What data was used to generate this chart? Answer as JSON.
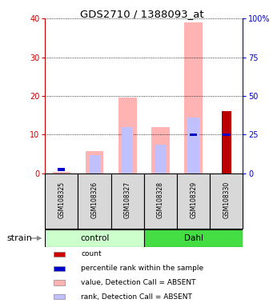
{
  "title": "GDS2710 / 1388093_at",
  "samples": [
    "GSM108325",
    "GSM108326",
    "GSM108327",
    "GSM108328",
    "GSM108329",
    "GSM108330"
  ],
  "groups": [
    "control",
    "control",
    "control",
    "Dahl",
    "Dahl",
    "Dahl"
  ],
  "group_colors": {
    "control": "#ccffcc",
    "Dahl": "#33dd33"
  },
  "ylim_left": [
    0,
    40
  ],
  "ylim_right": [
    0,
    100
  ],
  "yticks_left": [
    0,
    10,
    20,
    30,
    40
  ],
  "yticks_right": [
    0,
    25,
    50,
    75,
    100
  ],
  "ytick_labels_left": [
    "0",
    "10",
    "20",
    "30",
    "40"
  ],
  "ytick_labels_right": [
    "0",
    "25",
    "50",
    "75",
    "100%"
  ],
  "value_absent": [
    0.5,
    5.8,
    19.5,
    12.0,
    39.0,
    0.0
  ],
  "rank_absent": [
    0.0,
    4.8,
    12.0,
    7.5,
    14.5,
    0.0
  ],
  "count_value": [
    0,
    0,
    0,
    0,
    0,
    16.0
  ],
  "percentile_rank": [
    1.0,
    0,
    0,
    0,
    10.0,
    10.0
  ],
  "color_value_absent": "#ffb3b3",
  "color_rank_absent": "#c0c0ff",
  "color_count": "#bb0000",
  "color_percentile": "#0000cc",
  "legend_items": [
    {
      "color": "#cc0000",
      "label": "count"
    },
    {
      "color": "#0000cc",
      "label": "percentile rank within the sample"
    },
    {
      "color": "#ffb3b3",
      "label": "value, Detection Call = ABSENT"
    },
    {
      "color": "#c0c0ff",
      "label": "rank, Detection Call = ABSENT"
    }
  ],
  "strain_label": "strain",
  "left_axis_color": "#cc0000",
  "right_axis_color": "#0000cc"
}
